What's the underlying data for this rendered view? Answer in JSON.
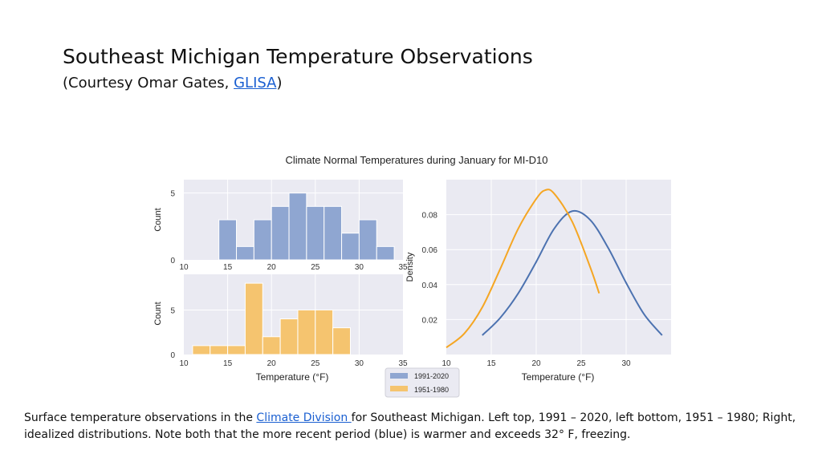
{
  "slide": {
    "title": "Southeast Michigan Temperature Observations",
    "subtitle_before": "(Courtesy Omar Gates, ",
    "subtitle_link": "GLISA",
    "subtitle_after": ")",
    "caption_part1": "Surface temperature observations in the ",
    "caption_link": "Climate Division ",
    "caption_part2": "for Southeast Michigan.  Left top, 1991 – 2020, left bottom, 1951 – 1980; Right, idealized distributions. Note both that the more recent period (blue) is warmer and exceeds 32° F, freezing."
  },
  "colors": {
    "recent": "#8fa6d1",
    "recent_line": "#4c72b0",
    "older": "#f5c46f",
    "older_line": "#f5a623",
    "panel_bg": "#eaeaf2",
    "grid": "#ffffff"
  },
  "chart_data": [
    {
      "type": "bar",
      "title": "Climate Normal Temperatures during January for MI-D10",
      "series_name": "1991-2020",
      "bin_edges": [
        14,
        16,
        18,
        20,
        22,
        24,
        26,
        28,
        30,
        32,
        34
      ],
      "values": [
        3,
        1,
        3,
        4,
        5,
        4,
        4,
        2,
        3,
        1
      ],
      "xlabel": "",
      "ylabel": "Count",
      "xlim": [
        10,
        35
      ],
      "ylim": [
        0,
        6
      ],
      "xticks": [
        10,
        15,
        20,
        25,
        30,
        35
      ],
      "yticks": [
        0,
        5
      ],
      "grid": true
    },
    {
      "type": "bar",
      "series_name": "1951-1980",
      "bin_edges": [
        11,
        13,
        15,
        17,
        19,
        21,
        23,
        25,
        27,
        29
      ],
      "values": [
        1,
        1,
        1,
        8,
        2,
        4,
        5,
        5,
        3
      ],
      "xlabel": "Temperature (°F)",
      "ylabel": "Count",
      "xlim": [
        10,
        35
      ],
      "ylim": [
        0,
        9
      ],
      "xticks": [
        10,
        15,
        20,
        25,
        30,
        35
      ],
      "yticks": [
        0,
        5
      ],
      "grid": true
    },
    {
      "type": "line",
      "series": [
        {
          "name": "1991-2020",
          "x": [
            14,
            16,
            18,
            20,
            22,
            24,
            26,
            28,
            30,
            32,
            34
          ],
          "y": [
            0.011,
            0.021,
            0.035,
            0.053,
            0.072,
            0.082,
            0.077,
            0.061,
            0.041,
            0.023,
            0.011
          ]
        },
        {
          "name": "1951-1980",
          "x": [
            10,
            12,
            14,
            16,
            18,
            20,
            21,
            22,
            24,
            26,
            27
          ],
          "y": [
            0.004,
            0.012,
            0.027,
            0.049,
            0.072,
            0.089,
            0.094,
            0.092,
            0.076,
            0.05,
            0.035
          ]
        }
      ],
      "xlabel": "Temperature (°F)",
      "ylabel": "Density",
      "xlim": [
        10,
        35
      ],
      "ylim": [
        0,
        0.1
      ],
      "xticks": [
        10,
        15,
        20,
        25,
        30
      ],
      "yticks": [
        0.02,
        0.04,
        0.06,
        0.08
      ],
      "grid": true
    }
  ]
}
